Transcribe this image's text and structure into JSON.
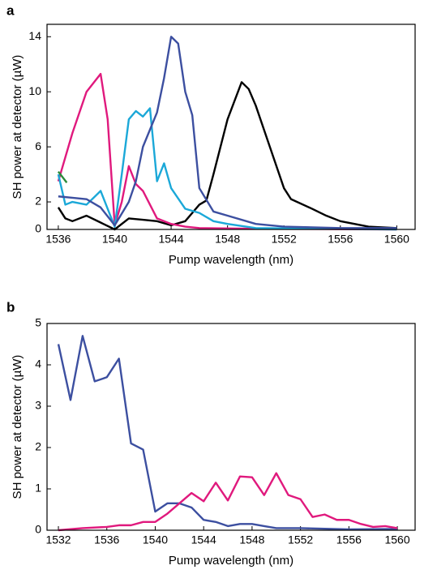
{
  "chart_data": [
    {
      "type": "line",
      "panel_label": "a",
      "x_label": "Pump wavelength (nm)",
      "y_label": "SH power at detector (µW)",
      "xlim": [
        1535.2,
        1561.3
      ],
      "ylim": [
        0,
        14.9
      ],
      "xticks": [
        1536,
        1540,
        1544,
        1548,
        1552,
        1556,
        1560
      ],
      "yticks": [
        0,
        2,
        6,
        10,
        14
      ],
      "series": [
        {
          "color": "#000000",
          "x": [
            1536,
            1536.5,
            1537,
            1538,
            1539,
            1540,
            1541,
            1542,
            1543,
            1544,
            1545,
            1546,
            1546.5,
            1547,
            1548,
            1549,
            1549.5,
            1550,
            1551,
            1552,
            1552.5,
            1554,
            1555,
            1556,
            1558,
            1560
          ],
          "values": [
            1.6,
            0.8,
            0.6,
            1.0,
            0.5,
            0,
            0.8,
            0.7,
            0.6,
            0.3,
            0.6,
            1.8,
            2.1,
            4,
            8,
            10.7,
            10.2,
            9,
            6,
            3,
            2.2,
            1.5,
            1,
            0.6,
            0.2,
            0.1
          ]
        },
        {
          "color": "#e0197d",
          "x": [
            1536,
            1537,
            1538,
            1539,
            1539.5,
            1540,
            1540.5,
            1541,
            1541.5,
            1542,
            1543,
            1544,
            1545,
            1546,
            1550,
            1560
          ],
          "values": [
            3.5,
            7,
            10,
            11.3,
            8,
            0.3,
            2,
            4.6,
            3.3,
            2.8,
            0.8,
            0.4,
            0.2,
            0.1,
            0.05,
            0
          ]
        },
        {
          "color": "#1ba8d8",
          "x": [
            1536,
            1536.5,
            1537,
            1538,
            1539,
            1539.5,
            1540,
            1540.5,
            1541,
            1541.5,
            1542,
            1542.5,
            1543,
            1543.5,
            1544,
            1545,
            1546,
            1547,
            1548,
            1550,
            1560
          ],
          "values": [
            4,
            1.8,
            2,
            1.8,
            2.8,
            1.5,
            0.2,
            4,
            8,
            8.6,
            8.2,
            8.8,
            3.5,
            4.8,
            3,
            1.5,
            1.2,
            0.6,
            0.4,
            0.1,
            0
          ]
        },
        {
          "color": "#3c4fa0",
          "x": [
            1536,
            1537,
            1538,
            1539,
            1540,
            1541,
            1541.5,
            1542,
            1543,
            1543.5,
            1544,
            1544.5,
            1545,
            1545.5,
            1546,
            1547,
            1548,
            1550,
            1552,
            1556,
            1560
          ],
          "values": [
            2.4,
            2.3,
            2.2,
            1.6,
            0.3,
            2,
            3.5,
            6,
            8.5,
            11,
            14,
            13.5,
            10,
            8.3,
            3,
            1.3,
            1.0,
            0.4,
            0.2,
            0.1,
            0.1
          ]
        },
        {
          "color": "#2a8a3a",
          "x": [
            1536,
            1536.6
          ],
          "values": [
            4.2,
            3.4
          ]
        }
      ]
    },
    {
      "type": "line",
      "panel_label": "b",
      "x_label": "Pump wavelength (nm)",
      "y_label": "SH power at detector (µW)",
      "xlim": [
        1531.06,
        1561.47
      ],
      "ylim": [
        0,
        5
      ],
      "xticks": [
        1532,
        1536,
        1540,
        1544,
        1548,
        1552,
        1556,
        1560
      ],
      "yticks": [
        0,
        1,
        2,
        3,
        4,
        5
      ],
      "series": [
        {
          "color": "#3c4fa0",
          "x": [
            1532,
            1533,
            1534,
            1535,
            1536,
            1537,
            1538,
            1539,
            1540,
            1541,
            1542,
            1543,
            1544,
            1545,
            1546,
            1547,
            1548,
            1549,
            1550,
            1552,
            1556,
            1560
          ],
          "values": [
            4.5,
            3.15,
            4.7,
            3.6,
            3.7,
            4.15,
            2.1,
            1.95,
            0.45,
            0.65,
            0.65,
            0.55,
            0.25,
            0.2,
            0.1,
            0.15,
            0.15,
            0.1,
            0.05,
            0.05,
            0.02,
            0.03
          ]
        },
        {
          "color": "#e0197d",
          "x": [
            1532,
            1534,
            1536,
            1537,
            1538,
            1539,
            1540,
            1541,
            1542,
            1543,
            1544,
            1545,
            1546,
            1547,
            1548,
            1549,
            1550,
            1551,
            1552,
            1553,
            1554,
            1555,
            1556,
            1557,
            1558,
            1559,
            1560
          ],
          "values": [
            0,
            0.05,
            0.08,
            0.12,
            0.12,
            0.2,
            0.2,
            0.4,
            0.65,
            0.9,
            0.7,
            1.15,
            0.72,
            1.3,
            1.28,
            0.85,
            1.38,
            0.85,
            0.75,
            0.32,
            0.38,
            0.25,
            0.25,
            0.15,
            0.08,
            0.1,
            0.05
          ]
        }
      ]
    }
  ]
}
